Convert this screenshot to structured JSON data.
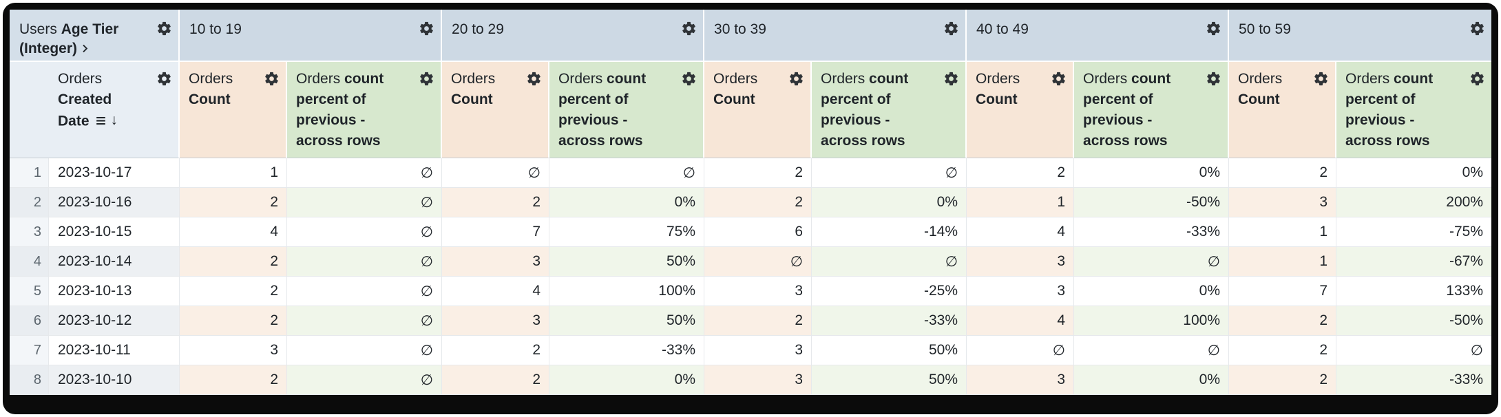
{
  "table": {
    "pivot": {
      "label": {
        "view": "Users",
        "field": "Age Tier (Integer)"
      },
      "tiers": [
        "10 to 19",
        "20 to 29",
        "30 to 39",
        "40 to 49",
        "50 to 59"
      ]
    },
    "measures": {
      "date": {
        "view": "Orders",
        "field": "Created Date"
      },
      "count": {
        "view": "Orders",
        "field": "Count"
      },
      "percent": {
        "view": "Orders",
        "field": "count percent of previous - across rows"
      }
    },
    "rows": [
      {
        "num": "1",
        "date": "2023-10-17",
        "values": [
          "1",
          "∅",
          "∅",
          "∅",
          "2",
          "∅",
          "2",
          "0%",
          "2",
          "0%"
        ]
      },
      {
        "num": "2",
        "date": "2023-10-16",
        "values": [
          "2",
          "∅",
          "2",
          "0%",
          "2",
          "0%",
          "1",
          "-50%",
          "3",
          "200%"
        ]
      },
      {
        "num": "3",
        "date": "2023-10-15",
        "values": [
          "4",
          "∅",
          "7",
          "75%",
          "6",
          "-14%",
          "4",
          "-33%",
          "1",
          "-75%"
        ]
      },
      {
        "num": "4",
        "date": "2023-10-14",
        "values": [
          "2",
          "∅",
          "3",
          "50%",
          "∅",
          "∅",
          "3",
          "∅",
          "1",
          "-67%"
        ]
      },
      {
        "num": "5",
        "date": "2023-10-13",
        "values": [
          "2",
          "∅",
          "4",
          "100%",
          "3",
          "-25%",
          "3",
          "0%",
          "7",
          "133%"
        ]
      },
      {
        "num": "6",
        "date": "2023-10-12",
        "values": [
          "2",
          "∅",
          "3",
          "50%",
          "2",
          "-33%",
          "4",
          "100%",
          "2",
          "-50%"
        ]
      },
      {
        "num": "7",
        "date": "2023-10-11",
        "values": [
          "3",
          "∅",
          "2",
          "-33%",
          "3",
          "50%",
          "∅",
          "∅",
          "2",
          "∅"
        ]
      },
      {
        "num": "8",
        "date": "2023-10-10",
        "values": [
          "2",
          "∅",
          "2",
          "0%",
          "3",
          "50%",
          "3",
          "0%",
          "2",
          "-33%"
        ]
      }
    ]
  },
  "icons": {
    "gear": "⚙",
    "sort_rows": "≡",
    "sort_direction": "↓",
    "chevron": "❯",
    "null_value": "∅"
  },
  "colors": {
    "frame_bg": "#0b0b0b",
    "pivot_label_bg": "#d4dfe9",
    "pivot_value_bg": "#cdd9e4",
    "row_header_bg": "#e8eef4",
    "count_header_bg": "#f7e6d7",
    "percent_header_bg": "#d7e8ce",
    "stripe_date_bg": "#edf0f3",
    "stripe_count_bg": "#faefe5",
    "stripe_percent_bg": "#f0f6ea",
    "num_col_bg": "#f3f6f9",
    "num_col_stripe_bg": "#e9edf1",
    "grid_line": "#e6e9ec",
    "header_divider": "#c6ccd2",
    "text_primary": "#1f2429",
    "text_row_number": "#5c666e"
  }
}
